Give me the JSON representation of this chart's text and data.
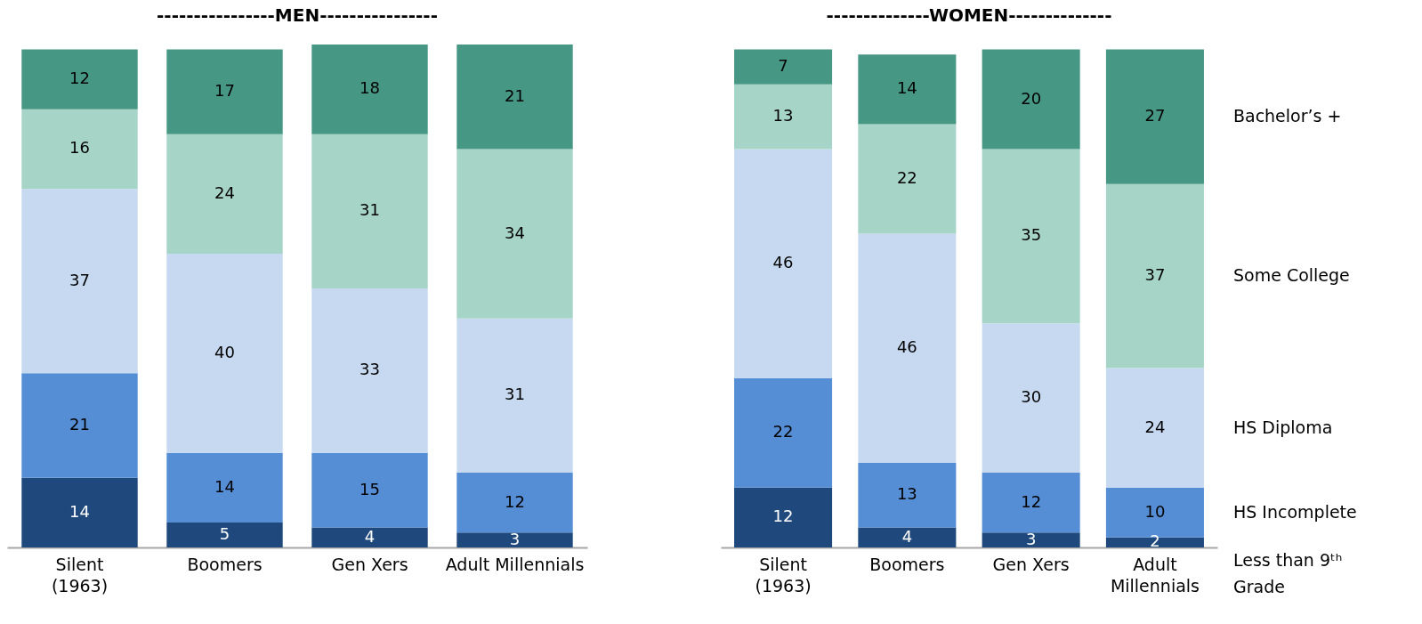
{
  "chart_data": [
    {
      "type": "bar",
      "title": "----------------MEN----------------",
      "categories": [
        "Silent\n(1963)",
        "Boomers",
        "Gen Xers",
        "Adult Millennials"
      ],
      "stacked": true,
      "data_labels": true,
      "tick_labels": "x",
      "series": [
        {
          "color": "#1f497d",
          "values": [
            14,
            5,
            4,
            3
          ]
        },
        {
          "color": "#558ed5",
          "values": [
            21,
            14,
            15,
            12
          ]
        },
        {
          "color": "#c6d9f1",
          "values": [
            37,
            40,
            33,
            31
          ]
        },
        {
          "color": "#a6d5c8",
          "values": [
            16,
            24,
            31,
            34
          ]
        },
        {
          "color": "#479785",
          "values": [
            12,
            17,
            18,
            21
          ]
        }
      ]
    },
    {
      "type": "bar",
      "title": "--------------WOMEN--------------",
      "categories": [
        "Silent\n(1963)",
        "Boomers",
        "Gen Xers",
        "Adult\nMillennials"
      ],
      "stacked": true,
      "data_labels": true,
      "tick_labels": "x",
      "series": [
        {
          "name": "Less than 9ᵗʰ\nGrade",
          "color": "#1f497d",
          "values": [
            12,
            4,
            3,
            2
          ]
        },
        {
          "name": "HS Incomplete",
          "color": "#558ed5",
          "values": [
            22,
            13,
            12,
            10
          ]
        },
        {
          "name": "HS Diploma",
          "color": "#c6d9f1",
          "values": [
            46,
            46,
            30,
            24
          ]
        },
        {
          "name": "Some College",
          "color": "#a6d5c8",
          "values": [
            13,
            22,
            35,
            37
          ]
        },
        {
          "name": "Bachelor’s +",
          "color": "#479785",
          "values": [
            7,
            14,
            20,
            27
          ]
        }
      ]
    }
  ]
}
